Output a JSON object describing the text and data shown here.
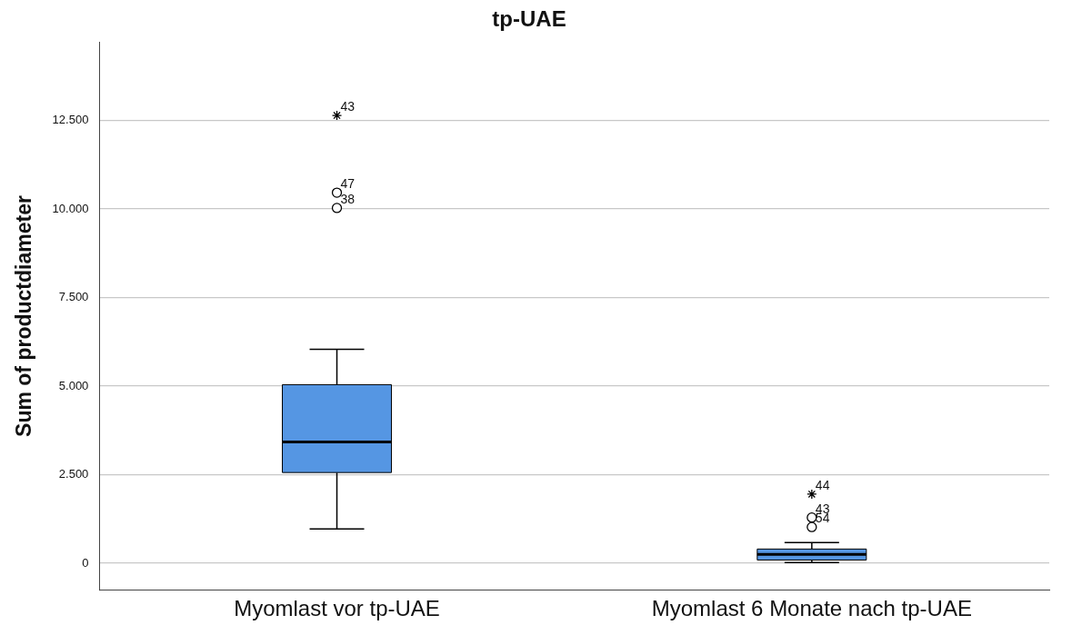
{
  "chart_data": {
    "type": "box",
    "title": "tp-UAE",
    "ylabel": "Sum of productdiameter",
    "categories": [
      "Myomlast vor tp-UAE",
      "Myomlast 6 Monate nach tp-UAE"
    ],
    "series": [
      {
        "type": "box",
        "color": "#5596e3",
        "boxes": [
          {
            "low": 970,
            "q1": 2560,
            "median": 3420,
            "q3": 5040,
            "high": 6040
          },
          {
            "low": 20,
            "q1": 90,
            "median": 250,
            "q3": 400,
            "high": 580
          }
        ]
      },
      {
        "type": "scatter",
        "marker": "circle",
        "color": "#000000",
        "x": [
          "Myomlast vor tp-UAE",
          "Myomlast vor tp-UAE",
          "Myomlast 6 Monate nach tp-UAE",
          "Myomlast 6 Monate nach tp-UAE"
        ],
        "values": [
          10030,
          10460,
          1020,
          1290
        ]
      },
      {
        "type": "scatter",
        "marker": "cross",
        "color": "#000000",
        "x": [
          "Myomlast vor tp-UAE",
          "Myomlast 6 Monate nach tp-UAE"
        ],
        "values": [
          12640,
          1950
        ]
      }
    ],
    "ylim": [
      -750,
      14700
    ],
    "yticks": [
      {
        "value": 0,
        "label": "0"
      },
      {
        "value": 2500,
        "label": "2.500"
      },
      {
        "value": 5000,
        "label": "5.000"
      },
      {
        "value": 7500,
        "label": "7.500"
      },
      {
        "value": 10000,
        "label": "10.000"
      },
      {
        "value": 12500,
        "label": "12.500"
      }
    ],
    "grid": "y",
    "legend": false,
    "annotations": [
      {
        "text": "43",
        "x": "Myomlast vor tp-UAE",
        "y": 12640
      },
      {
        "text": "47",
        "x": "Myomlast vor tp-UAE",
        "y": 10460
      },
      {
        "text": "38",
        "x": "Myomlast vor tp-UAE",
        "y": 10030
      },
      {
        "text": "44",
        "x": "Myomlast 6 Monate nach tp-UAE",
        "y": 1950
      },
      {
        "text": "43",
        "x": "Myomlast 6 Monate nach tp-UAE",
        "y": 1290
      },
      {
        "text": "54",
        "x": "Myomlast 6 Monate nach tp-UAE",
        "y": 1020
      }
    ]
  }
}
